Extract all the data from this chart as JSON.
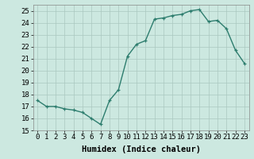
{
  "x": [
    0,
    1,
    2,
    3,
    4,
    5,
    6,
    7,
    8,
    9,
    10,
    11,
    12,
    13,
    14,
    15,
    16,
    17,
    18,
    19,
    20,
    21,
    22,
    23
  ],
  "y": [
    17.5,
    17.0,
    17.0,
    16.8,
    16.7,
    16.5,
    16.0,
    15.5,
    17.5,
    18.4,
    21.2,
    22.2,
    22.5,
    24.3,
    24.4,
    24.6,
    24.7,
    25.0,
    25.1,
    24.1,
    24.2,
    23.5,
    21.7,
    20.6
  ],
  "line_color": "#2d7d6e",
  "bg_color": "#cce8e0",
  "grid_color": "#aac8c0",
  "xlabel": "Humidex (Indice chaleur)",
  "ylim": [
    15,
    25.5
  ],
  "xlim": [
    -0.5,
    23.5
  ],
  "yticks": [
    15,
    16,
    17,
    18,
    19,
    20,
    21,
    22,
    23,
    24,
    25
  ],
  "xticks": [
    0,
    1,
    2,
    3,
    4,
    5,
    6,
    7,
    8,
    9,
    10,
    11,
    12,
    13,
    14,
    15,
    16,
    17,
    18,
    19,
    20,
    21,
    22,
    23
  ],
  "marker": "+",
  "marker_size": 3.5,
  "line_width": 1.0,
  "label_fontsize": 7.5,
  "tick_fontsize": 6.5
}
